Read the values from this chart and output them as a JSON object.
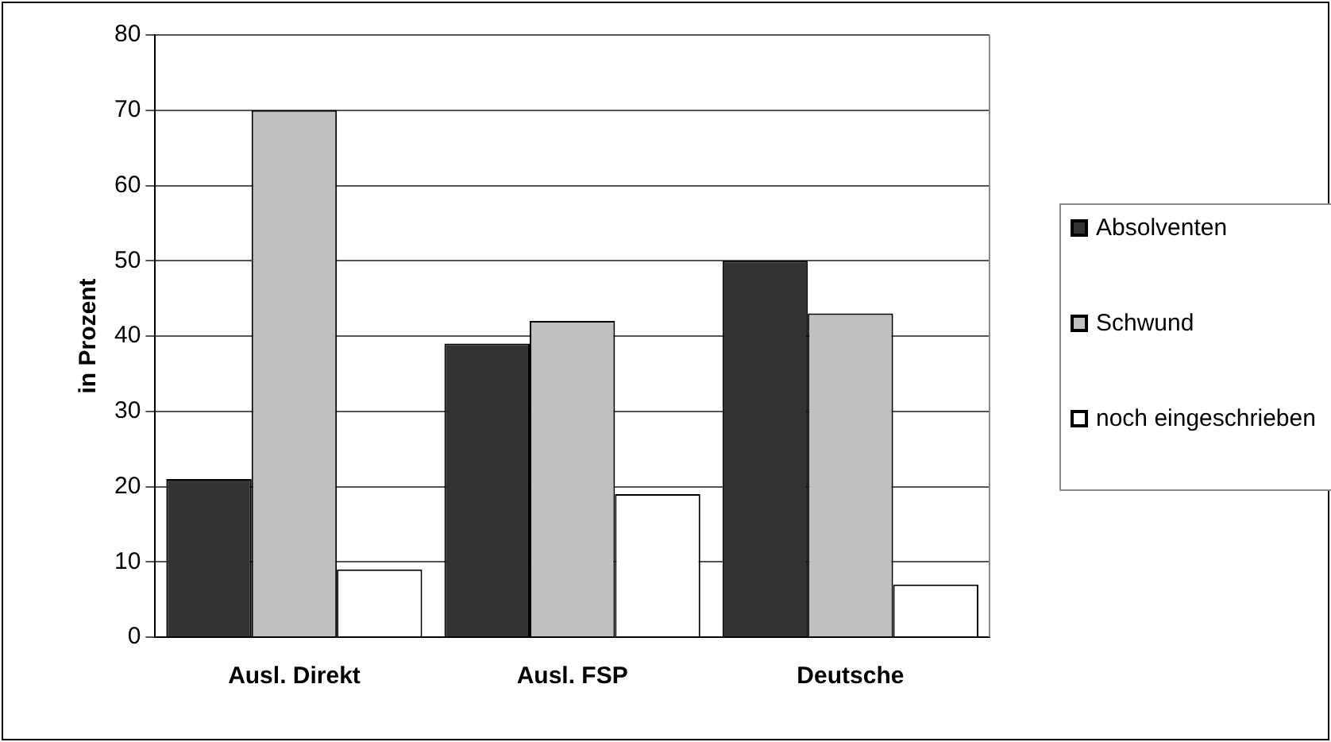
{
  "chart_data": {
    "type": "bar",
    "ylabel": "in Prozent",
    "categories": [
      "Ausl. Direkt",
      "Ausl. FSP",
      "Deutsche"
    ],
    "series": [
      {
        "name": "Absolventen",
        "color": "#333333",
        "values": [
          21,
          39,
          50
        ]
      },
      {
        "name": "Schwund",
        "color": "#c0c0c0",
        "values": [
          70,
          42,
          43
        ]
      },
      {
        "name": "noch eingeschrieben",
        "color": "#ffffff",
        "values": [
          9,
          19,
          7
        ]
      }
    ],
    "ylim": [
      0,
      80
    ],
    "yticks": [
      0,
      10,
      20,
      30,
      40,
      50,
      60,
      70,
      80
    ],
    "grid": "y",
    "legend": "right"
  }
}
